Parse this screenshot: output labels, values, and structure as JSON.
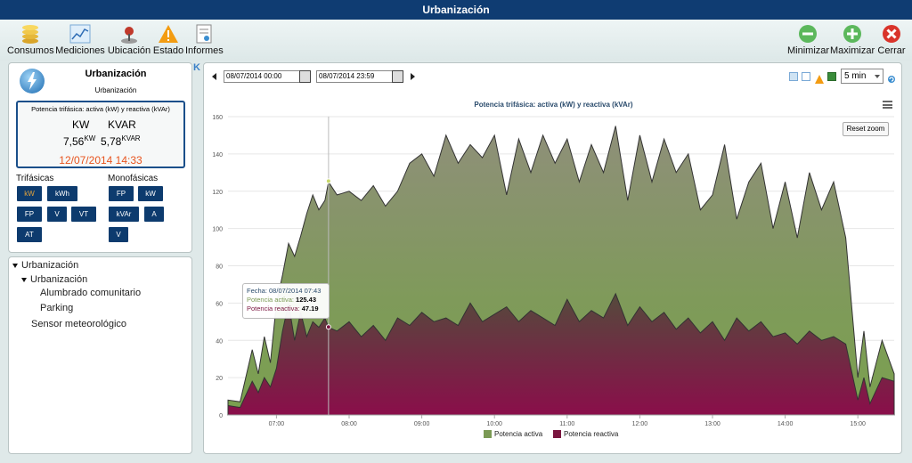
{
  "window": {
    "title": "Urbanización"
  },
  "toolbar": {
    "consumos": "Consumos",
    "mediciones": "Mediciones",
    "ubicacion": "Ubicación",
    "estado": "Estado",
    "informes": "Informes",
    "minimizar": "Minimizar",
    "maximizar": "Maximizar",
    "cerrar": "Cerrar"
  },
  "site": {
    "title": "Urbanización",
    "subtitle": "Urbanización",
    "reading_title": "Potencia trifásica: activa (kW) y reactiva (kVAr)",
    "kw_label": "KW",
    "kvar_label": "KVAR",
    "kw_value": "7,56",
    "kw_unit": "KW",
    "kvar_value": "5,78",
    "kvar_unit": "KVAR",
    "date": "12/07/2014 14:33"
  },
  "trifasicas": {
    "title": "Trifásicas",
    "buttons": [
      "kW",
      "kWh",
      "FP",
      "V",
      "VT",
      "AT"
    ]
  },
  "monofasicas": {
    "title": "Monofásicas",
    "buttons": [
      "FP",
      "kW",
      "kVAr",
      "A",
      "V"
    ]
  },
  "tree": {
    "root": "Urbanización",
    "child": "Urbanización",
    "leaf1": "Alumbrado comunitario",
    "leaf2": "Parking",
    "sensor": "Sensor meteorológico"
  },
  "filters": {
    "start": "08/07/2014 00:00",
    "end": "08/07/2014 23:59",
    "interval": "5 min"
  },
  "chart": {
    "reset_zoom": "Reset zoom",
    "tooltip_date": "Fecha: 08/07/2014 07:43",
    "tooltip_active_label": "Potencia activa:",
    "tooltip_active_value": "125.43",
    "tooltip_reactive_label": "Potencia reactiva:",
    "tooltip_reactive_value": "47.19"
  },
  "colors": {
    "active": "#7b9a55",
    "reactive": "#7a1640",
    "navy": "#0d3b6e",
    "date": "#e8541e"
  },
  "chart_data": {
    "type": "area",
    "title": "Potencia trifásica: activa (kW) y reactiva (kVAr)",
    "x_ticks": [
      "07:00",
      "08:00",
      "09:00",
      "10:00",
      "11:00",
      "12:00",
      "13:00",
      "14:00",
      "15:00"
    ],
    "y_ticks": [
      0,
      20,
      40,
      60,
      80,
      100,
      120,
      140,
      160
    ],
    "ylim": [
      0,
      160
    ],
    "xlim": [
      "06:20",
      "15:30"
    ],
    "series": [
      {
        "name": "Potencia activa",
        "color": "#7b9a55",
        "x": [
          "06:20",
          "06:30",
          "06:40",
          "06:45",
          "06:50",
          "06:55",
          "07:00",
          "07:05",
          "07:10",
          "07:15",
          "07:20",
          "07:25",
          "07:30",
          "07:35",
          "07:40",
          "07:43",
          "07:50",
          "08:00",
          "08:10",
          "08:20",
          "08:30",
          "08:40",
          "08:50",
          "09:00",
          "09:10",
          "09:20",
          "09:30",
          "09:40",
          "09:50",
          "10:00",
          "10:10",
          "10:20",
          "10:30",
          "10:40",
          "10:50",
          "11:00",
          "11:10",
          "11:20",
          "11:30",
          "11:40",
          "11:50",
          "12:00",
          "12:10",
          "12:20",
          "12:30",
          "12:40",
          "12:50",
          "13:00",
          "13:10",
          "13:20",
          "13:30",
          "13:40",
          "13:50",
          "14:00",
          "14:10",
          "14:20",
          "14:30",
          "14:40",
          "14:50",
          "15:00",
          "15:05",
          "15:10",
          "15:20",
          "15:30"
        ],
        "values": [
          8,
          7,
          35,
          22,
          42,
          28,
          60,
          75,
          92,
          85,
          96,
          108,
          118,
          110,
          115,
          125,
          118,
          120,
          115,
          123,
          112,
          120,
          135,
          140,
          128,
          150,
          135,
          145,
          138,
          150,
          118,
          148,
          130,
          150,
          135,
          148,
          125,
          145,
          130,
          155,
          115,
          150,
          125,
          148,
          130,
          140,
          110,
          118,
          145,
          105,
          125,
          135,
          100,
          125,
          95,
          130,
          110,
          125,
          95,
          20,
          45,
          15,
          40,
          22
        ]
      },
      {
        "name": "Potencia reactiva",
        "color": "#7a1640",
        "x": [
          "06:20",
          "06:30",
          "06:40",
          "06:45",
          "06:50",
          "06:55",
          "07:00",
          "07:05",
          "07:10",
          "07:15",
          "07:20",
          "07:25",
          "07:30",
          "07:35",
          "07:40",
          "07:43",
          "07:50",
          "08:00",
          "08:10",
          "08:20",
          "08:30",
          "08:40",
          "08:50",
          "09:00",
          "09:10",
          "09:20",
          "09:30",
          "09:40",
          "09:50",
          "10:00",
          "10:10",
          "10:20",
          "10:30",
          "10:40",
          "10:50",
          "11:00",
          "11:10",
          "11:20",
          "11:30",
          "11:40",
          "11:50",
          "12:00",
          "12:10",
          "12:20",
          "12:30",
          "12:40",
          "12:50",
          "13:00",
          "13:10",
          "13:20",
          "13:30",
          "13:40",
          "13:50",
          "14:00",
          "14:10",
          "14:20",
          "14:30",
          "14:40",
          "14:50",
          "15:00",
          "15:05",
          "15:10",
          "15:20",
          "15:30"
        ],
        "values": [
          5,
          4,
          18,
          12,
          20,
          15,
          25,
          45,
          60,
          40,
          55,
          42,
          50,
          47,
          52,
          47,
          45,
          50,
          42,
          48,
          40,
          52,
          48,
          55,
          50,
          52,
          48,
          60,
          50,
          54,
          58,
          50,
          56,
          52,
          48,
          62,
          50,
          56,
          52,
          65,
          48,
          58,
          50,
          55,
          46,
          52,
          44,
          50,
          40,
          52,
          45,
          50,
          42,
          44,
          38,
          45,
          40,
          42,
          38,
          8,
          20,
          6,
          20,
          18
        ]
      }
    ],
    "legend": [
      "Potencia activa",
      "Potencia reactiva"
    ],
    "legend_position": "bottom",
    "grid": true
  }
}
